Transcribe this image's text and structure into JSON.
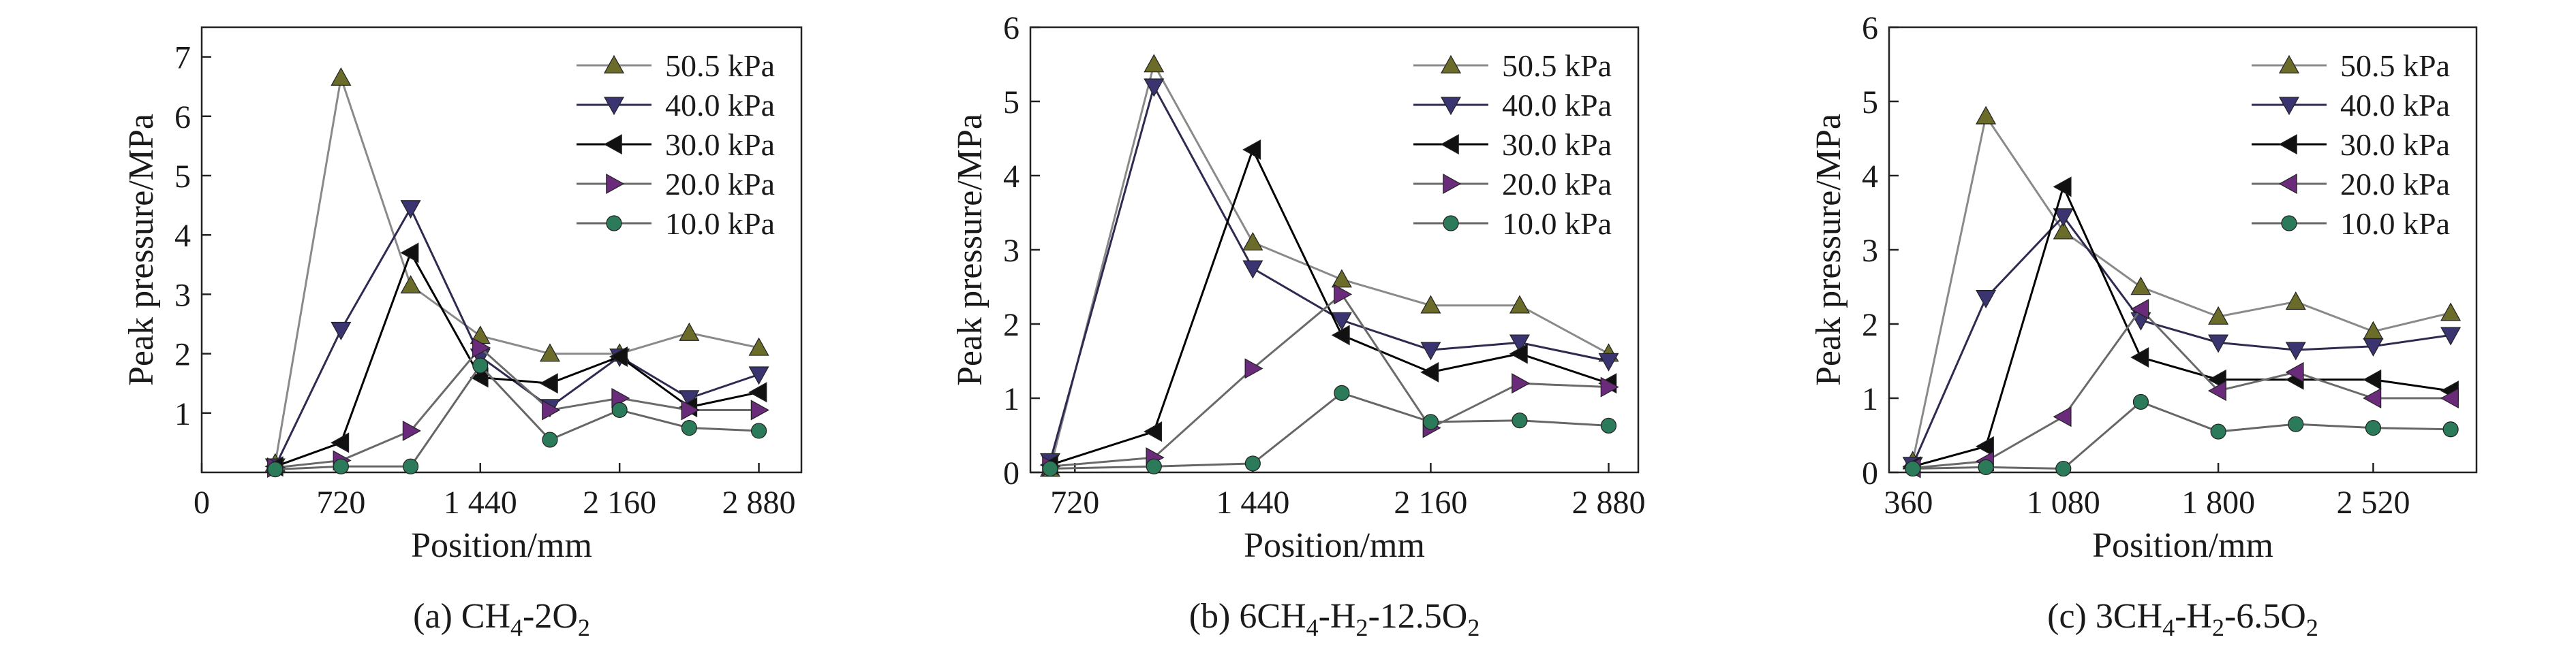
{
  "chart_data": [
    {
      "type": "line",
      "ylabel": "Peak pressure/MPa",
      "xlabel": "Position/mm",
      "caption": {
        "prefix": "(a) CH",
        "sub1": "4",
        "mid1": "-2O",
        "sub2": "2",
        "mid2": "",
        "sub3": "",
        "mid3": "",
        "sub4": ""
      },
      "xlim": [
        0,
        3100
      ],
      "ylim": [
        0,
        7.5
      ],
      "xticks": [
        0,
        720,
        1440,
        2160,
        2880
      ],
      "xtick_labels": [
        "0",
        "720",
        "1 440",
        "2 160",
        "2 880"
      ],
      "yticks": [
        1,
        2,
        3,
        4,
        5,
        6,
        7
      ],
      "ytick_labels": [
        "1",
        "2",
        "3",
        "4",
        "5",
        "6",
        "7"
      ],
      "legend_position": "top-right",
      "series": [
        {
          "name": "50.5 kPa",
          "marker": "triangle-up",
          "color": "#6b6b2a",
          "line": "#8a8a8a",
          "points": [
            [
              380,
              0.15
            ],
            [
              720,
              6.65
            ],
            [
              1080,
              3.15
            ],
            [
              1440,
              2.3
            ],
            [
              1800,
              2.0
            ],
            [
              2160,
              2.0
            ],
            [
              2520,
              2.35
            ],
            [
              2880,
              2.1
            ]
          ]
        },
        {
          "name": "40.0 kPa",
          "marker": "triangle-down",
          "color": "#3a3470",
          "line": "#2e2a50",
          "points": [
            [
              380,
              0.1
            ],
            [
              720,
              2.4
            ],
            [
              1080,
              4.45
            ],
            [
              1440,
              1.95
            ],
            [
              1800,
              1.1
            ],
            [
              2160,
              1.95
            ],
            [
              2520,
              1.25
            ],
            [
              2880,
              1.65
            ]
          ]
        },
        {
          "name": "30.0 kPa",
          "marker": "triangle-left",
          "color": "#111111",
          "line": "#000000",
          "points": [
            [
              380,
              0.1
            ],
            [
              720,
              0.5
            ],
            [
              1080,
              3.7
            ],
            [
              1440,
              1.6
            ],
            [
              1800,
              1.5
            ],
            [
              2160,
              1.95
            ],
            [
              2520,
              1.1
            ],
            [
              2880,
              1.35
            ]
          ]
        },
        {
          "name": "20.0 kPa",
          "marker": "triangle-right",
          "color": "#6a2c7a",
          "line": "#6a6a6a",
          "points": [
            [
              380,
              0.08
            ],
            [
              720,
              0.2
            ],
            [
              1080,
              0.7
            ],
            [
              1440,
              2.1
            ],
            [
              1800,
              1.05
            ],
            [
              2160,
              1.25
            ],
            [
              2520,
              1.05
            ],
            [
              2880,
              1.05
            ]
          ]
        },
        {
          "name": "10.0 kPa",
          "marker": "circle",
          "color": "#2b7a5a",
          "line": "#666666",
          "points": [
            [
              380,
              0.05
            ],
            [
              720,
              0.1
            ],
            [
              1080,
              0.1
            ],
            [
              1440,
              1.8
            ],
            [
              1800,
              0.55
            ],
            [
              2160,
              1.05
            ],
            [
              2520,
              0.75
            ],
            [
              2880,
              0.7
            ]
          ]
        }
      ]
    },
    {
      "type": "line",
      "ylabel": "Peak pressure/MPa",
      "xlabel": "Position/mm",
      "caption": {
        "prefix": "(b) 6CH",
        "sub1": "4",
        "mid1": "-H",
        "sub2": "2",
        "mid2": "-12.5O",
        "sub3": "2",
        "mid3": "",
        "sub4": ""
      },
      "xlim": [
        540,
        3000
      ],
      "ylim": [
        0,
        6
      ],
      "xticks": [
        720,
        1440,
        2160,
        2880
      ],
      "xtick_labels": [
        "720",
        "1 440",
        "2 160",
        "2 880"
      ],
      "yticks": [
        0,
        1,
        2,
        3,
        4,
        5,
        6
      ],
      "ytick_labels": [
        "0",
        "1",
        "2",
        "3",
        "4",
        "5",
        "6"
      ],
      "legend_position": "top-right",
      "series": [
        {
          "name": "50.5 kPa",
          "marker": "triangle-up",
          "color": "#6b6b2a",
          "line": "#8a8a8a",
          "points": [
            [
              620,
              0.05
            ],
            [
              1040,
              5.5
            ],
            [
              1440,
              3.1
            ],
            [
              1800,
              2.6
            ],
            [
              2160,
              2.25
            ],
            [
              2520,
              2.25
            ],
            [
              2880,
              1.6
            ]
          ]
        },
        {
          "name": "40.0 kPa",
          "marker": "triangle-down",
          "color": "#3a3470",
          "line": "#2e2a50",
          "points": [
            [
              620,
              0.15
            ],
            [
              1040,
              5.2
            ],
            [
              1440,
              2.75
            ],
            [
              1800,
              2.05
            ],
            [
              2160,
              1.65
            ],
            [
              2520,
              1.75
            ],
            [
              2880,
              1.5
            ]
          ]
        },
        {
          "name": "30.0 kPa",
          "marker": "triangle-left",
          "color": "#111111",
          "line": "#000000",
          "points": [
            [
              620,
              0.1
            ],
            [
              1040,
              0.55
            ],
            [
              1440,
              4.35
            ],
            [
              1800,
              1.85
            ],
            [
              2160,
              1.35
            ],
            [
              2520,
              1.6
            ],
            [
              2880,
              1.2
            ]
          ]
        },
        {
          "name": "20.0 kPa",
          "marker": "triangle-right",
          "color": "#6a2c7a",
          "line": "#6a6a6a",
          "points": [
            [
              620,
              0.08
            ],
            [
              1040,
              0.2
            ],
            [
              1440,
              1.4
            ],
            [
              1800,
              2.4
            ],
            [
              2160,
              0.6
            ],
            [
              2520,
              1.2
            ],
            [
              2880,
              1.15
            ]
          ]
        },
        {
          "name": "10.0 kPa",
          "marker": "circle",
          "color": "#2b7a5a",
          "line": "#666666",
          "points": [
            [
              620,
              0.05
            ],
            [
              1040,
              0.08
            ],
            [
              1440,
              0.12
            ],
            [
              1800,
              1.07
            ],
            [
              2160,
              0.68
            ],
            [
              2520,
              0.7
            ],
            [
              2880,
              0.63
            ]
          ]
        }
      ]
    },
    {
      "type": "line",
      "ylabel": "Peak pressure/MPa",
      "xlabel": "Position/mm",
      "caption": {
        "prefix": "(c) 3CH",
        "sub1": "4",
        "mid1": "-H",
        "sub2": "2",
        "mid2": "-6.5O",
        "sub3": "2",
        "mid3": "",
        "sub4": ""
      },
      "xlim": [
        270,
        3000
      ],
      "ylim": [
        0,
        6
      ],
      "xticks": [
        360,
        1080,
        1800,
        2520
      ],
      "xtick_labels": [
        "360",
        "1 080",
        "1 800",
        "2 520"
      ],
      "yticks": [
        0,
        1,
        2,
        3,
        4,
        5,
        6
      ],
      "ytick_labels": [
        "0",
        "1",
        "2",
        "3",
        "4",
        "5",
        "6"
      ],
      "legend_position": "top-right",
      "series": [
        {
          "name": "50.5 kPa",
          "marker": "triangle-up",
          "color": "#6b6b2a",
          "line": "#8a8a8a",
          "points": [
            [
              380,
              0.15
            ],
            [
              720,
              4.8
            ],
            [
              1080,
              3.25
            ],
            [
              1440,
              2.5
            ],
            [
              1800,
              2.1
            ],
            [
              2160,
              2.3
            ],
            [
              2520,
              1.9
            ],
            [
              2880,
              2.15
            ]
          ]
        },
        {
          "name": "40.0 kPa",
          "marker": "triangle-down",
          "color": "#3a3470",
          "line": "#2e2a50",
          "points": [
            [
              380,
              0.1
            ],
            [
              720,
              2.35
            ],
            [
              1080,
              3.45
            ],
            [
              1440,
              2.05
            ],
            [
              1800,
              1.75
            ],
            [
              2160,
              1.65
            ],
            [
              2520,
              1.7
            ],
            [
              2880,
              1.85
            ]
          ]
        },
        {
          "name": "30.0 kPa",
          "marker": "triangle-left",
          "color": "#111111",
          "line": "#000000",
          "points": [
            [
              380,
              0.08
            ],
            [
              720,
              0.35
            ],
            [
              1080,
              3.85
            ],
            [
              1440,
              1.55
            ],
            [
              1800,
              1.25
            ],
            [
              2160,
              1.25
            ],
            [
              2520,
              1.25
            ],
            [
              2880,
              1.1
            ]
          ]
        },
        {
          "name": "20.0 kPa",
          "marker": "triangle-left",
          "color": "#6a2c7a",
          "line": "#6a6a6a",
          "points": [
            [
              380,
              0.06
            ],
            [
              720,
              0.15
            ],
            [
              1080,
              0.75
            ],
            [
              1440,
              2.2
            ],
            [
              1800,
              1.1
            ],
            [
              2160,
              1.35
            ],
            [
              2520,
              1.0
            ],
            [
              2880,
              1.0
            ]
          ]
        },
        {
          "name": "10.0 kPa",
          "marker": "circle",
          "color": "#2b7a5a",
          "line": "#666666",
          "points": [
            [
              380,
              0.05
            ],
            [
              720,
              0.07
            ],
            [
              1080,
              0.05
            ],
            [
              1440,
              0.95
            ],
            [
              1800,
              0.55
            ],
            [
              2160,
              0.65
            ],
            [
              2520,
              0.6
            ],
            [
              2880,
              0.58
            ]
          ]
        }
      ]
    }
  ]
}
